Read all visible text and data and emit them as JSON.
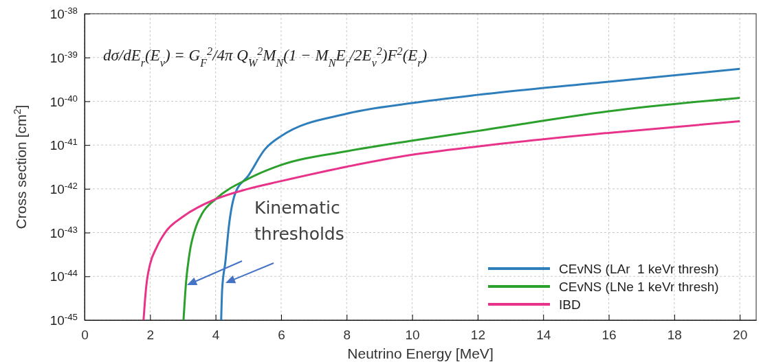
{
  "chart_data": {
    "type": "line",
    "xlabel": "Neutrino Energy [MeV]",
    "ylabel": "Cross section [cm$^{2}$]",
    "xlim": [
      0,
      20.5
    ],
    "xticks": [
      0,
      2,
      4,
      6,
      8,
      10,
      12,
      14,
      16,
      18,
      20
    ],
    "ylim": [
      1e-45,
      1e-38
    ],
    "log": true,
    "yticks": [
      {
        "value": 1e-45,
        "label": "10$^{-45}$"
      },
      {
        "value": 1e-44,
        "label": "10$^{-44}$"
      },
      {
        "value": 1e-43,
        "label": "10$^{-43}$"
      },
      {
        "value": 1e-42,
        "label": "10$^{-42}$"
      },
      {
        "value": 1e-41,
        "label": "10$^{-41}$"
      },
      {
        "value": 1e-40,
        "label": "10$^{-40}$"
      },
      {
        "value": 1e-39,
        "label": "10$^{-39}$"
      },
      {
        "value": 1e-38,
        "label": "10$^{-38}$"
      }
    ],
    "grid": true,
    "legend": "bottom right",
    "line_style": "solid",
    "series": [
      {
        "name": "CEvNS (LAr  1 keVr thresh)",
        "color": "#2f7ebc",
        "x": [
          4.17,
          4.2,
          4.3,
          4.4,
          4.6,
          5,
          5.5,
          6,
          8,
          10,
          12,
          16,
          20
        ],
        "values": [
          1e-45,
          5e-45,
          2.2e-44,
          1.3e-43,
          7.9e-43,
          2e-42,
          7.9e-42,
          1.6e-41,
          5.2e-41,
          9.1e-41,
          1.4e-40,
          2.8e-40,
          5.5e-40
        ]
      },
      {
        "name": "CEvNS (LNe 1 keVr thresh)",
        "color": "#2ca02c",
        "x": [
          3.02,
          3.1,
          3.2,
          3.4,
          3.6,
          4,
          5,
          6,
          8,
          10,
          12,
          16,
          20
        ],
        "values": [
          1e-45,
          7.6e-45,
          3.2e-44,
          1.35e-43,
          2.8e-43,
          5.8e-43,
          1.7e-42,
          3.5e-42,
          7.2e-42,
          1.26e-41,
          2.1e-41,
          5.9e-41,
          1.2e-40
        ]
      },
      {
        "name": "IBD",
        "color": "#e8338a",
        "x": [
          1.8,
          1.85,
          1.9,
          2,
          2.2,
          2.5,
          3,
          4,
          5,
          6,
          8,
          10,
          12,
          16,
          20
        ],
        "values": [
          1e-45,
          3.2e-45,
          7.6e-45,
          1.9e-44,
          4.6e-44,
          1.1e-43,
          2.3e-43,
          5.8e-43,
          1e-42,
          1.5e-42,
          3.2e-42,
          6e-42,
          9.3e-42,
          1.9e-41,
          3.5e-41
        ]
      }
    ],
    "annotations": [
      "dσ/dE$_{r}$(E$_{ν}$) = G$_{F}$$^{2}$/4π Q$_{W}$$^{2}$M$_{N}$(1 − M$_{N}$E$_{r}$/2E$_{ν}$$^{2}$)F$^{2}$(E$_{r}$)",
      "Kinematic thresholds"
    ]
  }
}
